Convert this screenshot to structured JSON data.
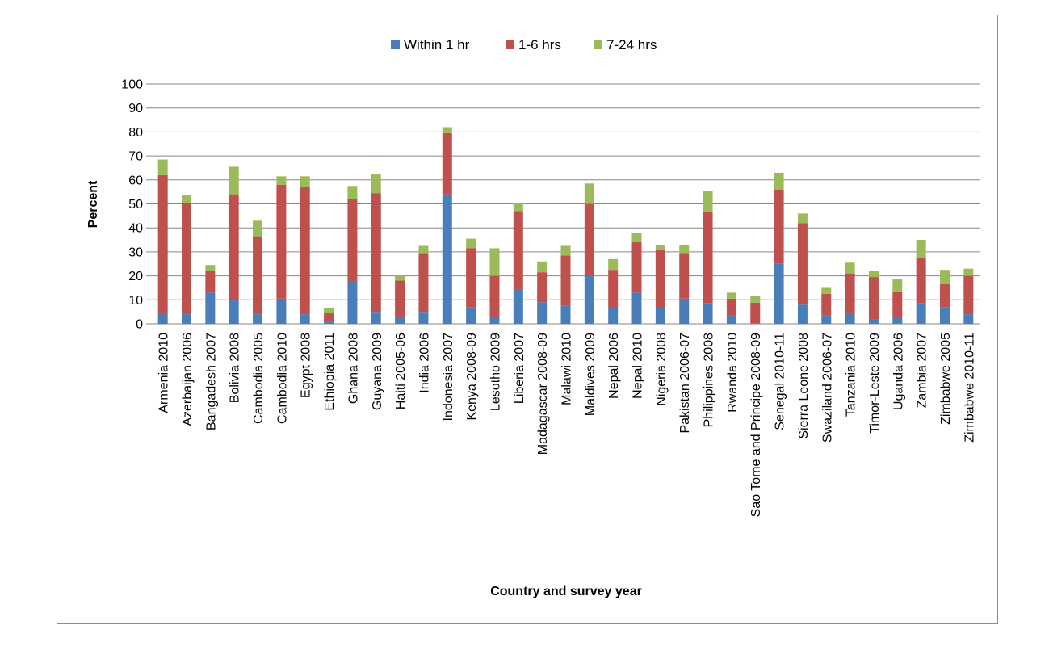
{
  "chart_data": {
    "type": "bar",
    "stacked": true,
    "title": "",
    "xlabel": "Country and survey year",
    "ylabel": "Percent",
    "ylim": [
      0,
      100
    ],
    "yticks": [
      0,
      10,
      20,
      30,
      40,
      50,
      60,
      70,
      80,
      90,
      100
    ],
    "grid": true,
    "legend_position": "top",
    "categories": [
      "Armenia 2010",
      "Azerbaijan 2006",
      "Bangadesh 2007",
      "Bolivia 2008",
      "Cambodia 2005",
      "Cambodia 2010",
      "Egypt 2008",
      "Ethiopia 2011",
      "Ghana 2008",
      "Guyana 2009",
      "Haiti 2005-06",
      "India 2006",
      "Indonesia 2007",
      "Kenya 2008-09",
      "Lesotho 2009",
      "Liberia 2007",
      "Madagascar 2008-09",
      "Malawi 2010",
      "Maldives 2009",
      "Nepal 2006",
      "Nepal 2010",
      "Nigeria 2008",
      "Pakistan 2006-07",
      "Philippines 2008",
      "Rwanda 2010",
      "Sao Tome and Principe 2008-09",
      "Senegal 2010-11",
      "Sierra Leone 2008",
      "Swaziland 2006-07",
      "Tanzania 2010",
      "Timor-Leste 2009",
      "Uganda 2006",
      "Zambia 2007",
      "Zimbabwe 2005",
      "Zimbabwe 2010-11"
    ],
    "series": [
      {
        "name": "Within 1 hr",
        "color": "#4a7ebb",
        "values": [
          4.5,
          4,
          13,
          10,
          4,
          10.5,
          4,
          1,
          17.5,
          5,
          3,
          5,
          54,
          7,
          3,
          14.5,
          9,
          7.5,
          20.5,
          6.5,
          13,
          6.5,
          10.5,
          8.5,
          3.5,
          0.3,
          25,
          8,
          3.5,
          4.5,
          2,
          3,
          8.5,
          7,
          4
        ]
      },
      {
        "name": "1-6 hrs",
        "color": "#c0504d",
        "values": [
          57.5,
          46.5,
          9,
          44,
          32.5,
          47.5,
          53,
          3.5,
          34.5,
          49.5,
          15,
          24.5,
          25.5,
          24.5,
          17,
          32.5,
          12.5,
          21,
          29.5,
          16,
          21,
          24.5,
          19,
          38,
          7,
          8.5,
          31,
          34,
          9,
          16.5,
          17.5,
          10.5,
          19,
          9.5,
          16
        ]
      },
      {
        "name": "7-24 hrs",
        "color": "#9bbb59",
        "values": [
          6.5,
          3,
          2.5,
          11.5,
          6.5,
          3.5,
          4.5,
          2,
          5.5,
          8,
          2,
          3,
          2.5,
          4,
          11.5,
          3.5,
          4.5,
          4,
          8.5,
          4.5,
          4,
          2,
          3.5,
          9,
          2.5,
          3,
          7,
          4,
          2.5,
          4.5,
          2.5,
          5,
          7.5,
          6,
          3
        ]
      }
    ]
  }
}
